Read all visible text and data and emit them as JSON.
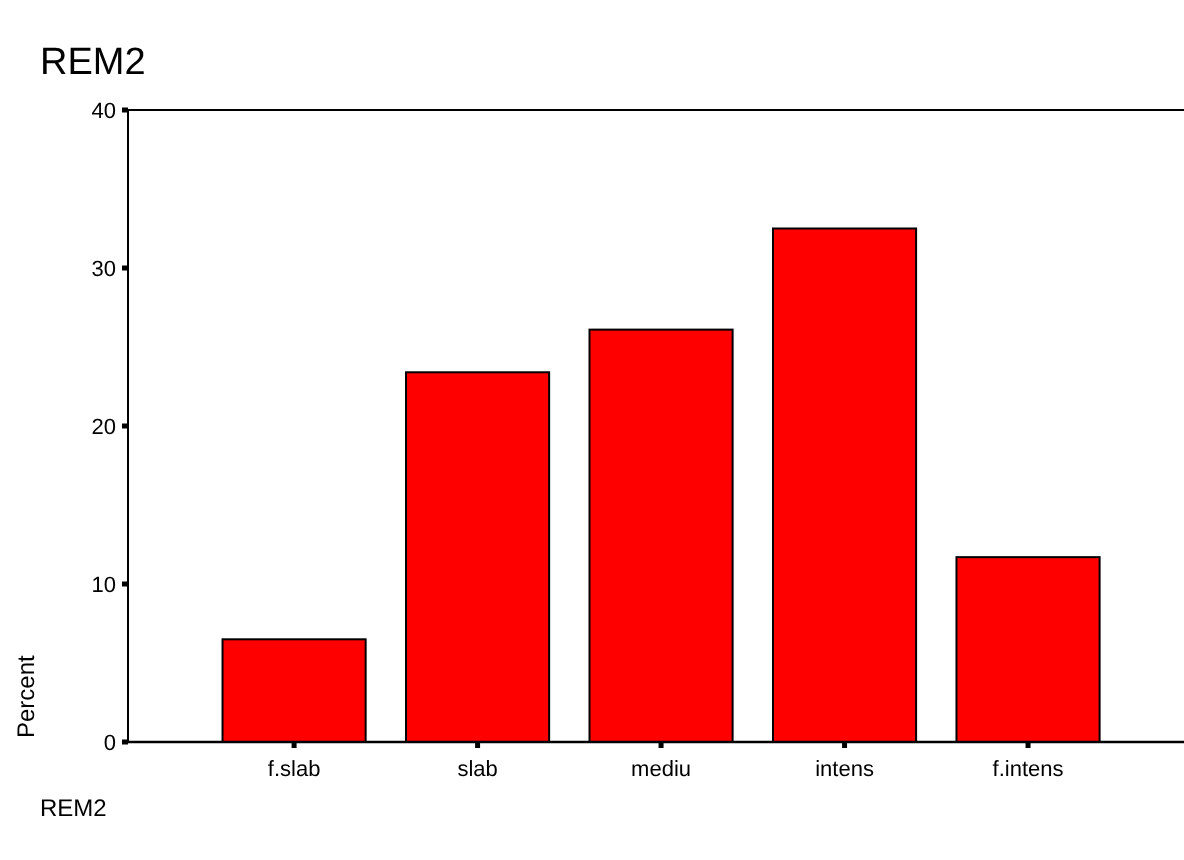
{
  "chart_data": {
    "type": "bar",
    "title": "REM2",
    "xlabel": "REM2",
    "ylabel": "Percent",
    "categories": [
      "f.slab",
      "slab",
      "mediu",
      "intens",
      "f.intens"
    ],
    "values": [
      6.5,
      23.4,
      26.1,
      32.5,
      11.7
    ],
    "color": "#ff0000",
    "ylim": [
      0,
      40
    ],
    "yticks": [
      0,
      10,
      20,
      30,
      40
    ]
  }
}
